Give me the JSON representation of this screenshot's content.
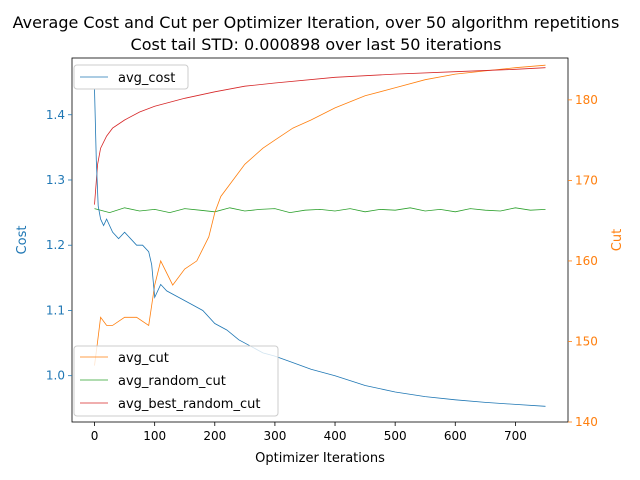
{
  "chart_data": {
    "type": "line",
    "title": "Average Cost and Cut per Optimizer Iteration, over 50 algorithm repetitions",
    "subtitle": "Cost tail STD: 0.000898 over last 50 iterations",
    "xlabel": "Optimizer Iterations",
    "ylabel_left": "Cost",
    "ylabel_right": "Cut",
    "xlim": [
      -37.5,
      787.5
    ],
    "ylim_left": [
      0.929,
      1.487
    ],
    "ylim_right": [
      140,
      185.2
    ],
    "xticks": [
      0,
      100,
      200,
      300,
      400,
      500,
      600,
      700
    ],
    "yticks_left": [
      1.0,
      1.1,
      1.2,
      1.3,
      1.4
    ],
    "yticks_right": [
      140,
      150,
      160,
      170,
      180
    ],
    "grid": false,
    "colors": {
      "cost": "#1f77b4",
      "cut": "#ff7f0e",
      "random": "#2ca02c",
      "best": "#d62728"
    },
    "legend_left": {
      "position": "top-left",
      "entries": [
        "avg_cost"
      ]
    },
    "legend_right": {
      "position": "bottom-left",
      "entries": [
        "avg_cut",
        "avg_random_cut",
        "avg_best_random_cut"
      ]
    },
    "series": [
      {
        "name": "avg_cost",
        "axis": "left",
        "x": [
          0,
          3,
          6,
          10,
          15,
          20,
          30,
          40,
          50,
          60,
          70,
          80,
          90,
          95,
          100,
          110,
          120,
          140,
          160,
          180,
          200,
          220,
          240,
          260,
          280,
          300,
          330,
          360,
          400,
          450,
          500,
          550,
          600,
          650,
          700,
          750
        ],
        "y": [
          1.44,
          1.33,
          1.26,
          1.24,
          1.23,
          1.24,
          1.22,
          1.21,
          1.22,
          1.21,
          1.2,
          1.2,
          1.19,
          1.17,
          1.12,
          1.14,
          1.13,
          1.12,
          1.11,
          1.1,
          1.08,
          1.07,
          1.055,
          1.045,
          1.035,
          1.03,
          1.02,
          1.01,
          1.0,
          0.985,
          0.975,
          0.968,
          0.963,
          0.959,
          0.956,
          0.953
        ]
      },
      {
        "name": "avg_cut",
        "axis": "right",
        "x": [
          0,
          5,
          10,
          20,
          30,
          50,
          70,
          90,
          100,
          110,
          130,
          150,
          170,
          190,
          200,
          210,
          230,
          250,
          280,
          300,
          330,
          360,
          400,
          450,
          500,
          550,
          600,
          650,
          700,
          750
        ],
        "y": [
          147,
          150,
          153,
          152,
          152,
          153,
          153,
          152,
          157,
          160,
          157,
          159,
          160,
          163,
          166,
          168,
          170,
          172,
          174,
          175,
          176.5,
          177.5,
          179,
          180.5,
          181.5,
          182.5,
          183.2,
          183.6,
          184,
          184.3
        ]
      },
      {
        "name": "avg_random_cut",
        "axis": "right",
        "x": [
          0,
          25,
          50,
          75,
          100,
          125,
          150,
          175,
          200,
          225,
          250,
          275,
          300,
          325,
          350,
          375,
          400,
          425,
          450,
          475,
          500,
          525,
          550,
          575,
          600,
          625,
          650,
          675,
          700,
          725,
          750
        ],
        "y": [
          166.5,
          166,
          166.6,
          166.2,
          166.4,
          166,
          166.5,
          166.3,
          166.1,
          166.6,
          166.2,
          166.4,
          166.5,
          166,
          166.3,
          166.4,
          166.2,
          166.5,
          166.1,
          166.4,
          166.3,
          166.6,
          166.2,
          166.4,
          166.1,
          166.5,
          166.3,
          166.2,
          166.6,
          166.3,
          166.4
        ]
      },
      {
        "name": "avg_best_random_cut",
        "axis": "right",
        "x": [
          0,
          5,
          10,
          20,
          30,
          50,
          75,
          100,
          150,
          200,
          250,
          300,
          400,
          500,
          600,
          700,
          750
        ],
        "y": [
          167,
          172,
          174,
          175.5,
          176.5,
          177.5,
          178.5,
          179.2,
          180.2,
          181,
          181.7,
          182.1,
          182.8,
          183.2,
          183.5,
          183.8,
          184
        ]
      }
    ]
  }
}
